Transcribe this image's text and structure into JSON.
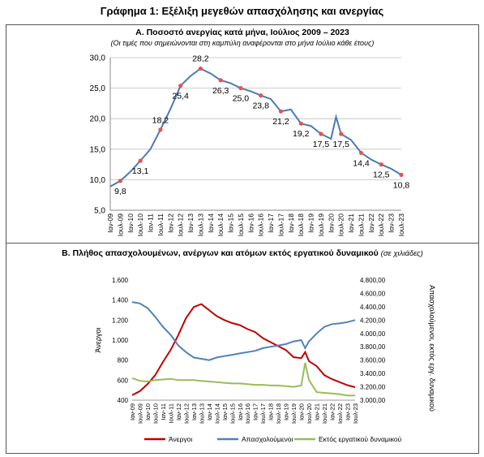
{
  "title": "Γράφημα 1: Εξέλιξη μεγεθών απασχόλησης και ανεργίας",
  "colors": {
    "unemployment_rate": "#4a7ab5",
    "marker": "#e8524a",
    "unemployed": "#c00000",
    "employed": "#4f81bd",
    "out_of_labor": "#9bbb59"
  },
  "chart_data": [
    {
      "type": "line",
      "title": "Α. Ποσοστό ανεργίας κατά μήνα, Ιούλιος 2009 – 2023",
      "subtitle": "(Οι τιμές που σημειώνονται στη καμπύλη αναφέρονται στο μήνα Ιούλιο κάθε έτους)",
      "ylim": [
        5.0,
        30.0
      ],
      "yticks": [
        "5,0",
        "10,0",
        "15,0",
        "20,0",
        "25,0",
        "30,0"
      ],
      "grid": true,
      "xticks": [
        "Ιαν-09",
        "Ιουλ-09",
        "Ιαν-10",
        "Ιουλ-10",
        "Ιαν-11",
        "Ιουλ-11",
        "Ιαν-12",
        "Ιουλ-12",
        "Ιαν-13",
        "Ιουλ-13",
        "Ιαν-14",
        "Ιουλ-14",
        "Ιαν-15",
        "Ιουλ-15",
        "Ιαν-16",
        "Ιουλ-16",
        "Ιαν-17",
        "Ιουλ-17",
        "Ιαν-18",
        "Ιουλ-18",
        "Ιαν-19",
        "Ιουλ-19",
        "Ιαν-20",
        "Ιουλ-20",
        "Ιαν-21",
        "Ιουλ-21",
        "Ιαν-22",
        "Ιουλ-22",
        "Ιαν-23",
        "Ιουλ-23"
      ],
      "series": [
        {
          "x": [
            0,
            1,
            2,
            3,
            4,
            5,
            6,
            7,
            8,
            9,
            10,
            11,
            12,
            13,
            14,
            15,
            16,
            17,
            18,
            19,
            20,
            21,
            22,
            22.5,
            23,
            24,
            25,
            26,
            27,
            28,
            29
          ],
          "values": [
            8.9,
            9.8,
            11.3,
            13.1,
            15.0,
            18.2,
            21.6,
            25.4,
            27.0,
            28.2,
            27.4,
            26.3,
            25.8,
            25.0,
            24.5,
            23.8,
            23.2,
            21.2,
            21.5,
            19.2,
            18.8,
            17.5,
            16.7,
            20.3,
            17.5,
            16.5,
            14.4,
            13.3,
            12.5,
            11.8,
            10.8
          ]
        }
      ],
      "labeled_points": [
        {
          "x": 1,
          "label": "9,8"
        },
        {
          "x": 3,
          "label": "13,1"
        },
        {
          "x": 5,
          "label": "18,2"
        },
        {
          "x": 7,
          "label": "25,4"
        },
        {
          "x": 9,
          "label": "28,2"
        },
        {
          "x": 11,
          "label": "26,3"
        },
        {
          "x": 13,
          "label": "25,0"
        },
        {
          "x": 15,
          "label": "23,8"
        },
        {
          "x": 17,
          "label": "21,2"
        },
        {
          "x": 19,
          "label": "19,2"
        },
        {
          "x": 21,
          "label": "17,5"
        },
        {
          "x": 23,
          "label": "17,5"
        },
        {
          "x": 25,
          "label": "14,4"
        },
        {
          "x": 27,
          "label": "12,5"
        },
        {
          "x": 29,
          "label": "10,8"
        }
      ]
    },
    {
      "type": "line",
      "title": "Β. Πλήθος απασχολουμένων, ανέργων και ατόμων εκτός εργατικού δυναμικού",
      "title_note": "(σε χιλιάδες)",
      "ylabel": "Άνεργοι",
      "y2label": "Απασχολούμενοι, εκτός εργ. δυναμικού",
      "ylim": [
        400,
        1600
      ],
      "y2lim": [
        3000,
        4800
      ],
      "yticks": [
        "400",
        "600",
        "800",
        "1.000",
        "1.200",
        "1.400",
        "1.600"
      ],
      "y2ticks": [
        "3.000,00",
        "3.200,00",
        "3.400,00",
        "3.600,00",
        "3.800,00",
        "4.000,00",
        "4.200,00",
        "4.400,00",
        "4.600,00",
        "4.800,00"
      ],
      "xticks": [
        "Ιαν-09",
        "Ιουλ-09",
        "Ιαν-10",
        "Ιουλ-10",
        "Ιαν-11",
        "Ιουλ-11",
        "Ιαν-12",
        "Ιουλ-12",
        "Ιαν-13",
        "Ιουλ-13",
        "Ιαν-14",
        "Ιουλ-14",
        "Ιαν-15",
        "Ιουλ-15",
        "Ιαν-16",
        "Ιουλ-16",
        "Ιαν-17",
        "Ιουλ-17",
        "Ιαν-18",
        "Ιουλ-18",
        "Ιαν-19",
        "Ιουλ-19",
        "Ιαν-20",
        "Ιουλ-20",
        "Ιαν-21",
        "Ιουλ-21",
        "Ιαν-22",
        "Ιουλ-22",
        "Ιαν-23",
        "Ιουλ-23"
      ],
      "legend": "bottom",
      "series": [
        {
          "name": "Άνεργοι",
          "axis": "left",
          "x": [
            0,
            1,
            2,
            3,
            4,
            5,
            6,
            7,
            8,
            9,
            10,
            11,
            12,
            13,
            14,
            15,
            16,
            17,
            18,
            19,
            20,
            21,
            22,
            22.5,
            23,
            24,
            25,
            26,
            27,
            28,
            29
          ],
          "values": [
            450,
            490,
            560,
            650,
            780,
            900,
            1050,
            1220,
            1330,
            1360,
            1300,
            1240,
            1200,
            1170,
            1150,
            1110,
            1080,
            1020,
            980,
            940,
            900,
            830,
            820,
            880,
            790,
            740,
            650,
            610,
            580,
            550,
            530
          ]
        },
        {
          "name": "Απασχολούμενοι",
          "axis": "right",
          "x": [
            0,
            1,
            2,
            3,
            4,
            5,
            6,
            7,
            8,
            9,
            10,
            11,
            12,
            13,
            14,
            15,
            16,
            17,
            18,
            19,
            20,
            21,
            22,
            22.5,
            23,
            24,
            25,
            26,
            27,
            28,
            29
          ],
          "values": [
            4470,
            4450,
            4380,
            4250,
            4100,
            3980,
            3820,
            3720,
            3640,
            3620,
            3600,
            3640,
            3660,
            3680,
            3700,
            3720,
            3740,
            3780,
            3800,
            3820,
            3840,
            3880,
            3900,
            3780,
            3880,
            4000,
            4100,
            4140,
            4150,
            4170,
            4200
          ]
        },
        {
          "name": "Εκτός εργατικού δυναμικού",
          "axis": "right",
          "x": [
            0,
            1,
            2,
            3,
            4,
            5,
            6,
            7,
            8,
            9,
            10,
            11,
            12,
            13,
            14,
            15,
            16,
            17,
            18,
            19,
            20,
            21,
            22,
            22.5,
            23,
            24,
            25,
            26,
            27,
            28,
            29
          ],
          "values": [
            3330,
            3290,
            3280,
            3300,
            3310,
            3320,
            3300,
            3300,
            3300,
            3290,
            3280,
            3270,
            3260,
            3250,
            3250,
            3240,
            3230,
            3230,
            3220,
            3220,
            3210,
            3200,
            3220,
            3560,
            3300,
            3120,
            3110,
            3100,
            3090,
            3070,
            3070
          ]
        }
      ]
    }
  ]
}
